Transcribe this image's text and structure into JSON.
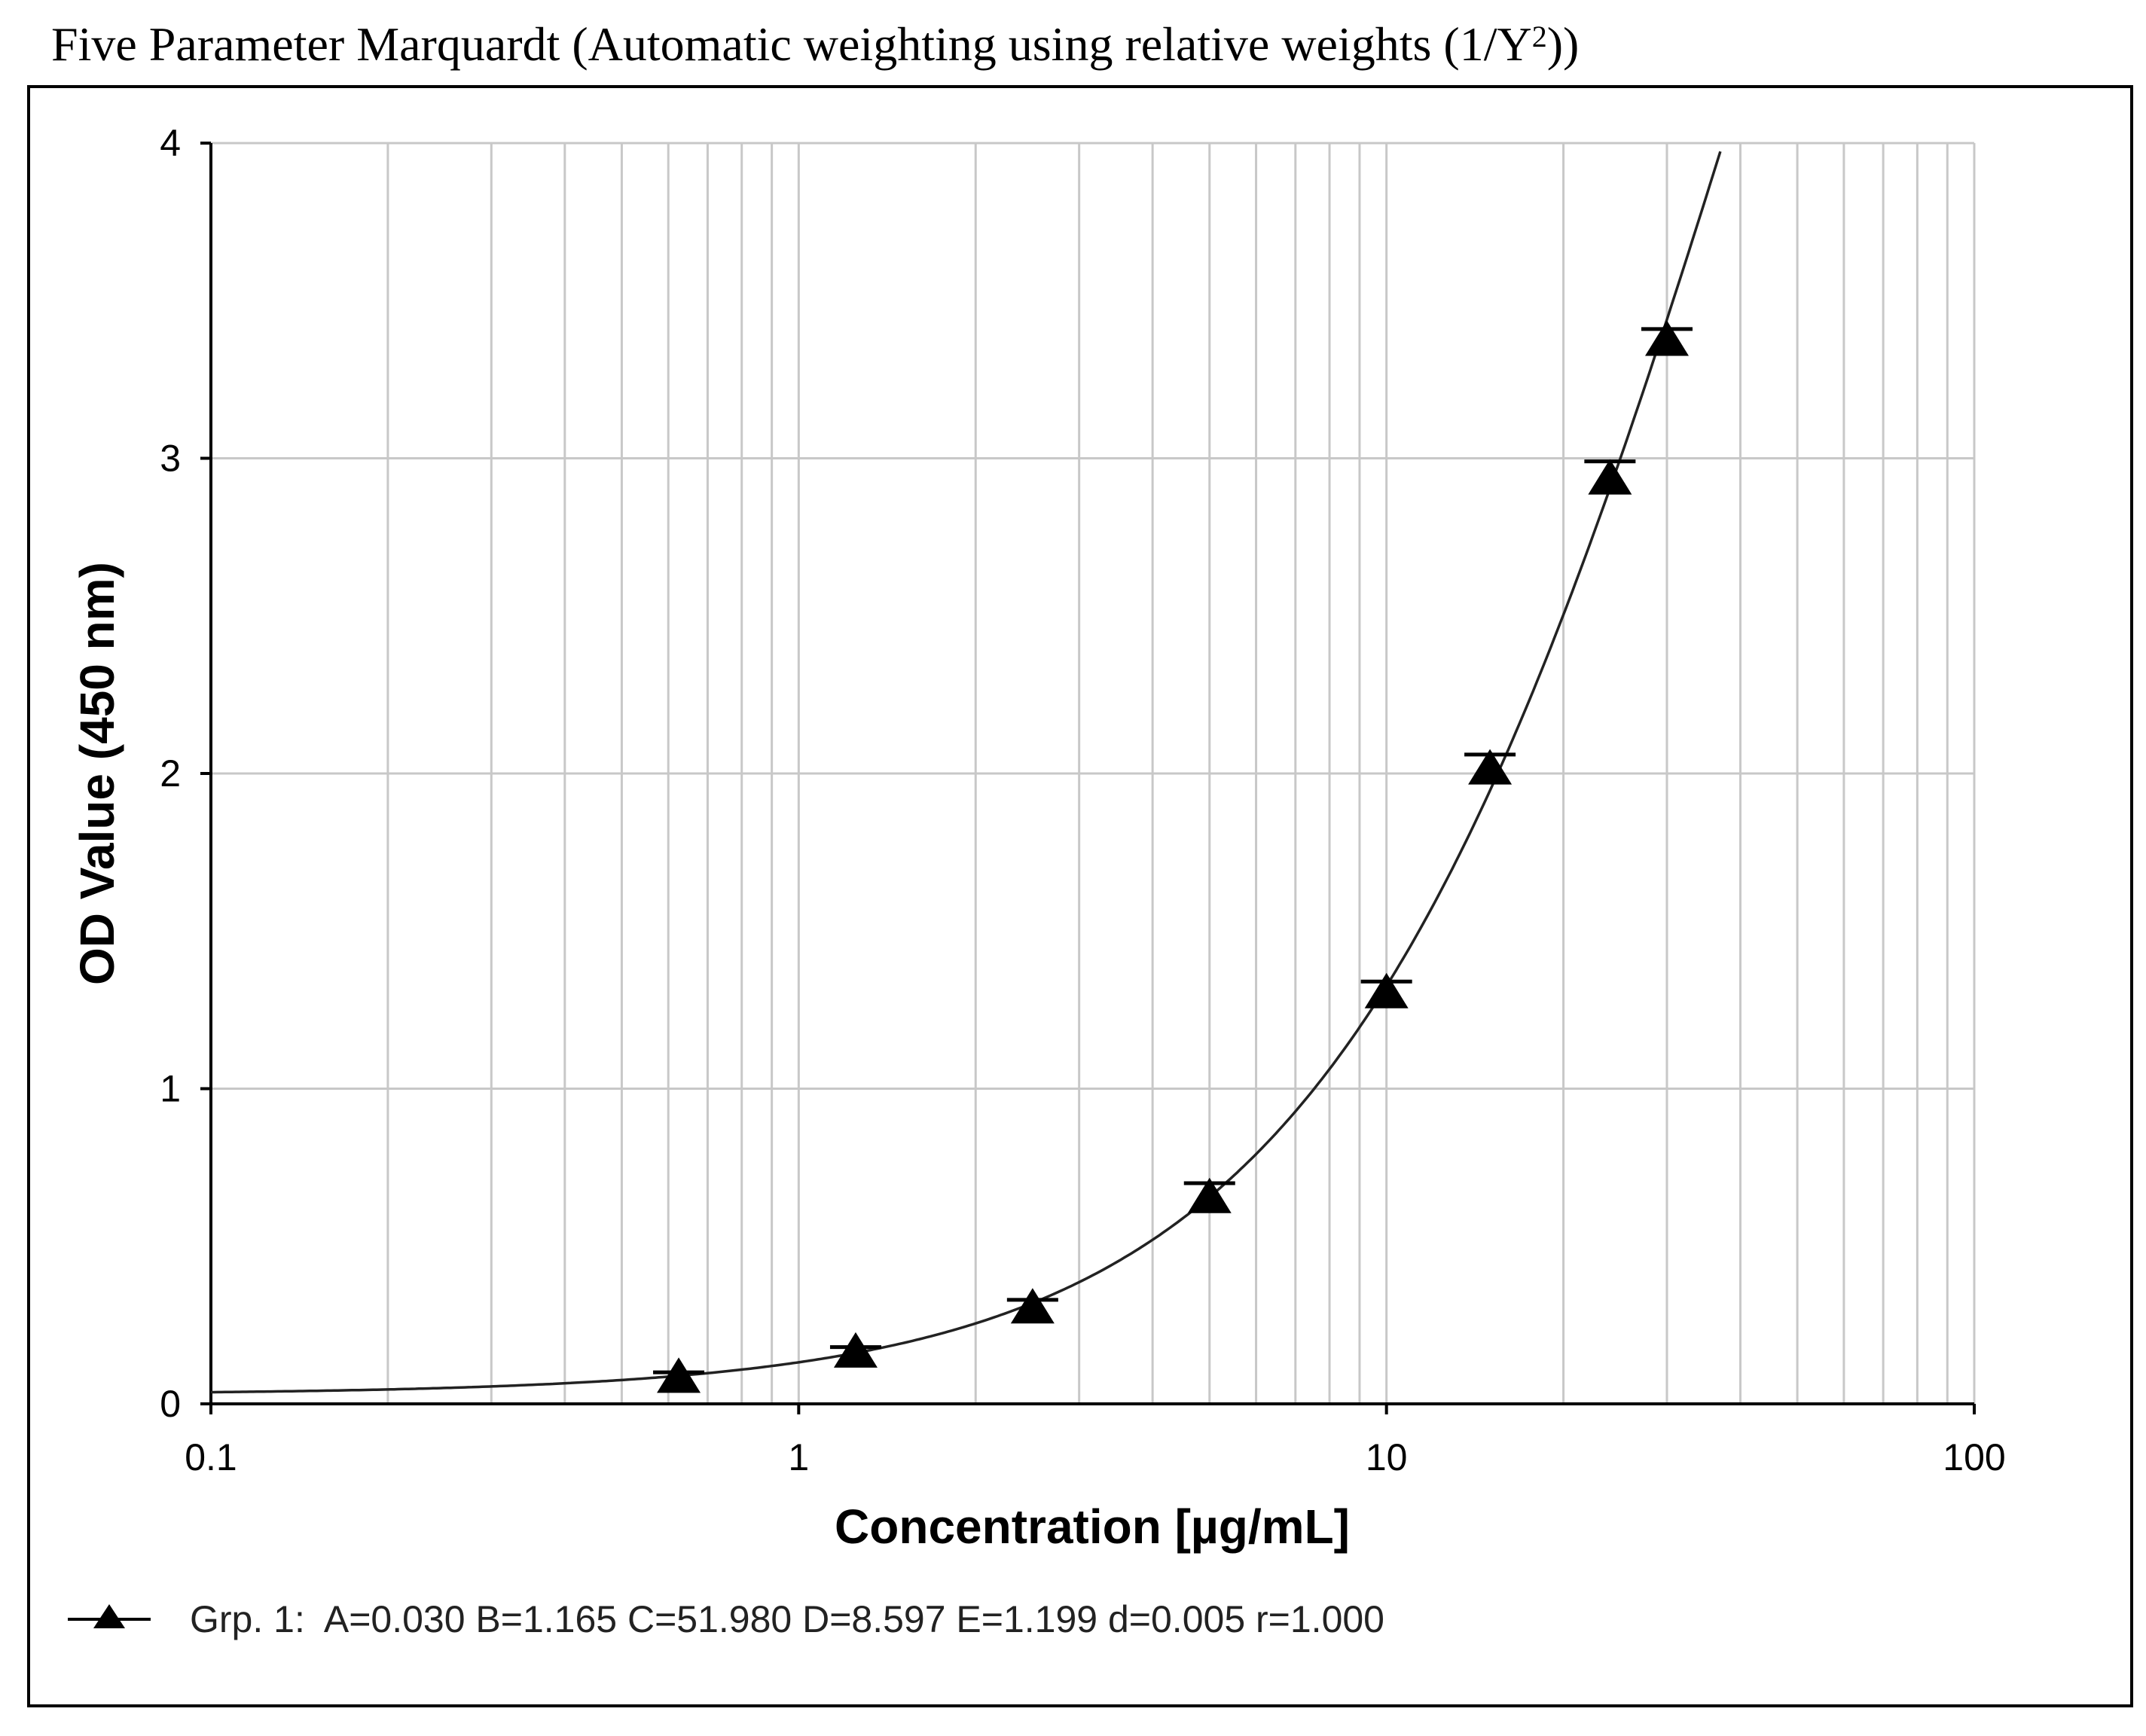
{
  "title": {
    "prefix": "Five Parameter Marquardt (Automatic weighting using relative weights (1/Y",
    "sup": "2",
    "suffix": "))"
  },
  "chart_data": {
    "type": "scatter",
    "xscale": "log",
    "xlim": [
      0.1,
      100
    ],
    "ylim": [
      0,
      4
    ],
    "xlabel": "Concentration [µg/mL]",
    "ylabel": "OD Value (450 nm)",
    "x_ticks": [
      "0.1",
      "1",
      "10",
      "100"
    ],
    "y_ticks": [
      "0",
      "1",
      "2",
      "3",
      "4"
    ],
    "grid": true,
    "series": [
      {
        "name": "Grp. 1",
        "marker": "triangle",
        "color": "#000000",
        "points": [
          {
            "x": 0.625,
            "y": 0.09,
            "err": 0.01
          },
          {
            "x": 1.25,
            "y": 0.17,
            "err": 0.01
          },
          {
            "x": 2.5,
            "y": 0.31,
            "err": 0.02
          },
          {
            "x": 5,
            "y": 0.66,
            "err": 0.04
          },
          {
            "x": 10,
            "y": 1.31,
            "err": 0.03
          },
          {
            "x": 15,
            "y": 2.02,
            "err": 0.04
          },
          {
            "x": 24,
            "y": 2.94,
            "err": 0.05
          },
          {
            "x": 30,
            "y": 3.38,
            "err": 0.03
          }
        ]
      }
    ],
    "fit": {
      "model": "5PL",
      "A": 0.03,
      "B": 1.165,
      "C": 51.98,
      "D": 8.597,
      "E": 1.199
    },
    "legend": {
      "label": "Grp. 1:  A=0.030 B=1.165 C=51.980 D=8.597 E=1.199 d=0.005 r=1.000",
      "position": "bottom-left"
    }
  }
}
